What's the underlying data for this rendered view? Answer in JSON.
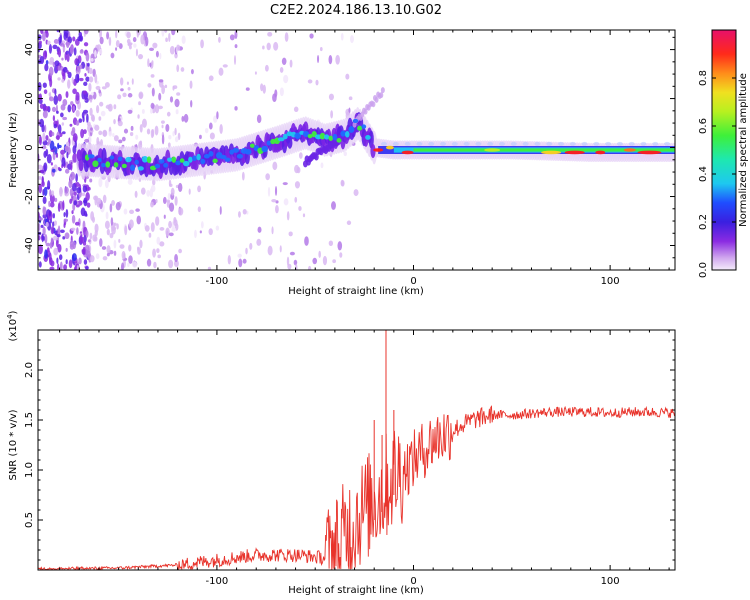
{
  "title": "C2E2.2024.186.13.10.G02",
  "chart_data": [
    {
      "type": "heatmap",
      "title": "C2E2.2024.186.13.10.G02",
      "xlabel": "Height of straight line (km)",
      "ylabel": "Frequency (Hz)",
      "xlim": [
        -191,
        133
      ],
      "ylim": [
        -50,
        48
      ],
      "xticks": [
        -100,
        0,
        100
      ],
      "yticks": [
        -40,
        -20,
        0,
        20,
        40
      ],
      "colorbar": {
        "label": "Normalized spectral amplitude",
        "range": [
          0.0,
          1.0
        ],
        "ticks": [
          0.0,
          0.2,
          0.4,
          0.6,
          0.8
        ]
      },
      "ridge": [
        {
          "x": -168,
          "y": -5
        },
        {
          "x": -150,
          "y": -6
        },
        {
          "x": -130,
          "y": -7
        },
        {
          "x": -110,
          "y": -5
        },
        {
          "x": -90,
          "y": -3
        },
        {
          "x": -70,
          "y": 2
        },
        {
          "x": -55,
          "y": 6
        },
        {
          "x": -45,
          "y": 3
        },
        {
          "x": -35,
          "y": 5
        },
        {
          "x": -28,
          "y": 10
        },
        {
          "x": -20,
          "y": 0
        },
        {
          "x": -10,
          "y": -1
        },
        {
          "x": 0,
          "y": -1
        },
        {
          "x": 50,
          "y": -1
        },
        {
          "x": 90,
          "y": -2
        },
        {
          "x": 133,
          "y": -2
        }
      ]
    },
    {
      "type": "line",
      "xlabel": "Height of straight line (km)",
      "ylabel": "SNR (10 * v/v)",
      "y_multiplier": "(x10^4)",
      "multiplier_base": "(x10",
      "multiplier_exp": "4",
      "multiplier_close": ")",
      "xlim": [
        -191,
        133
      ],
      "ylim": [
        0.0,
        2.4
      ],
      "xticks": [
        -100,
        0,
        100
      ],
      "yticks": [
        0.5,
        1.0,
        1.5,
        2.0
      ],
      "ytick_labels": [
        "0.5",
        "1.0",
        "1.5",
        "2.0"
      ],
      "series": [
        {
          "name": "SNR",
          "color": "#e8332b",
          "x": [
            -191,
            -150,
            -120,
            -100,
            -80,
            -60,
            -45,
            -40,
            -35,
            -30,
            -25,
            -20,
            -15,
            -12,
            -10,
            -5,
            0,
            5,
            10,
            20,
            30,
            40,
            50,
            70,
            90,
            100,
            110,
            120,
            133
          ],
          "y": [
            0.01,
            0.02,
            0.05,
            0.1,
            0.15,
            0.15,
            0.12,
            0.2,
            0.35,
            0.5,
            0.6,
            0.7,
            0.8,
            0.9,
            0.95,
            1.0,
            1.1,
            1.2,
            1.3,
            1.4,
            1.5,
            1.55,
            1.55,
            1.58,
            1.58,
            1.57,
            1.58,
            1.58,
            1.57
          ]
        }
      ],
      "spikes": [
        {
          "x": -14,
          "y": 2.42
        },
        {
          "x": -20,
          "y": 1.5
        },
        {
          "x": -10,
          "y": 1.6
        },
        {
          "x": -16,
          "y": 1.35
        }
      ]
    }
  ]
}
